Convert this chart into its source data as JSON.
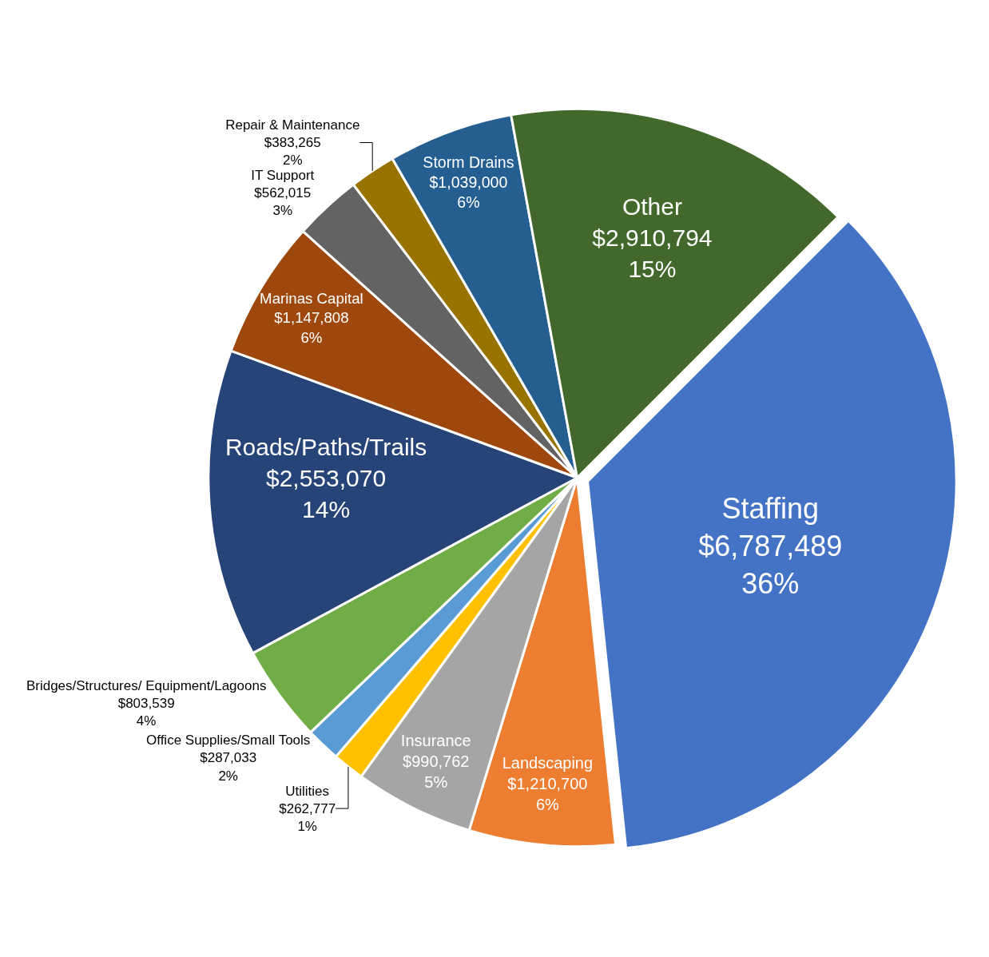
{
  "chart_data": {
    "type": "pie",
    "categories": [
      "Staffing",
      "Landscaping",
      "Insurance",
      "Utilities",
      "Office Supplies/Small Tools",
      "Bridges/Structures/ Equipment/Lagoons",
      "Roads/Paths/Trails",
      "Marinas Capital",
      "IT Support",
      "Repair & Maintenance",
      "Storm Drains",
      "Other"
    ],
    "values": [
      6787489,
      1210700,
      990762,
      262777,
      287033,
      803539,
      2553070,
      1147808,
      562015,
      383265,
      1039000,
      2910794
    ],
    "value_labels": [
      "$6,787,489\n36%",
      "$1,210,700\n6%",
      "$990,762\n5%",
      "$262,777\n1%",
      "$287,033\n2%",
      "$803,539\n4%",
      "$2,553,070\n14%",
      "$1,147,808\n6%",
      "$562,015\n3%",
      "$383,265\n2%",
      "$1,039,000\n6%",
      "$2,910,794\n15%"
    ],
    "colors": [
      "#4472c4",
      "#ed7d31",
      "#a5a5a5",
      "#ffc000",
      "#5b9bd5",
      "#70ad47",
      "#264478",
      "#9e480e",
      "#636363",
      "#997300",
      "#255e91",
      "#43682b"
    ],
    "legend": false
  }
}
